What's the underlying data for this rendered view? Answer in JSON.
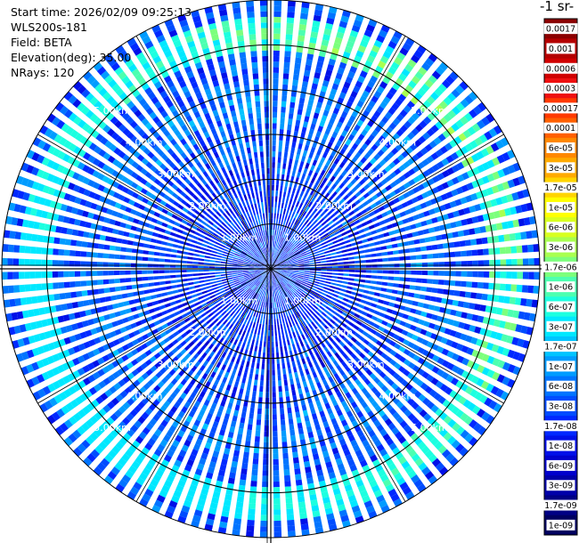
{
  "info": {
    "start_time": "Start time: 2026/02/09 09:25:13",
    "instrument": "WLS200s-181",
    "field": "Field: BETA",
    "elevation": "Elevation(deg): 35.00",
    "nrays": "NRays: 120"
  },
  "colorbar": {
    "title": "-1 sr-",
    "labels": [
      "0.0017",
      "0.001",
      "0.0006",
      "0.0003",
      "0.00017",
      "0.0001",
      "6e-05",
      "3e-05",
      "1.7e-05",
      "1e-05",
      "6e-06",
      "3e-06",
      "1.7e-06",
      "1e-06",
      "6e-07",
      "3e-07",
      "1.7e-07",
      "1e-07",
      "6e-08",
      "3e-08",
      "1.7e-08",
      "1e-08",
      "6e-09",
      "3e-09",
      "1.7e-09",
      "1e-09"
    ],
    "colors": [
      "#8b0000",
      "#b40000",
      "#d00000",
      "#ee1010",
      "#ff3a00",
      "#ff6000",
      "#ff8800",
      "#ffaa00",
      "#ffd400",
      "#ffff00",
      "#d8ff20",
      "#a8ff50",
      "#7cff7c",
      "#4cffb0",
      "#1cffe0",
      "#00e8ff",
      "#00c4ff",
      "#009cff",
      "#0074ff",
      "#004cff",
      "#0028ff",
      "#0010e8",
      "#0000cc",
      "#0000a8",
      "#000084",
      "#000060"
    ]
  },
  "chart_data": {
    "type": "heatmap",
    "projection": "polar (PPI scan)",
    "title": "",
    "field": "BETA",
    "elevation_deg": 35.0,
    "n_rays": 120,
    "range_rings_km": [
      1,
      2,
      3,
      4,
      5
    ],
    "ring_labels": [
      "1.00km",
      "2.00km",
      "3.00km",
      "4.00km",
      "5.00km"
    ],
    "max_range_km": 6.0,
    "value_range": [
      1e-09,
      0.0017
    ],
    "scale": "log",
    "background_level_range": [
      1e-08,
      1e-07
    ],
    "enhanced_band_km": [
      4.9,
      5.6
    ],
    "enhanced_band_level": [
      3e-07,
      3e-06
    ],
    "grid": true
  }
}
